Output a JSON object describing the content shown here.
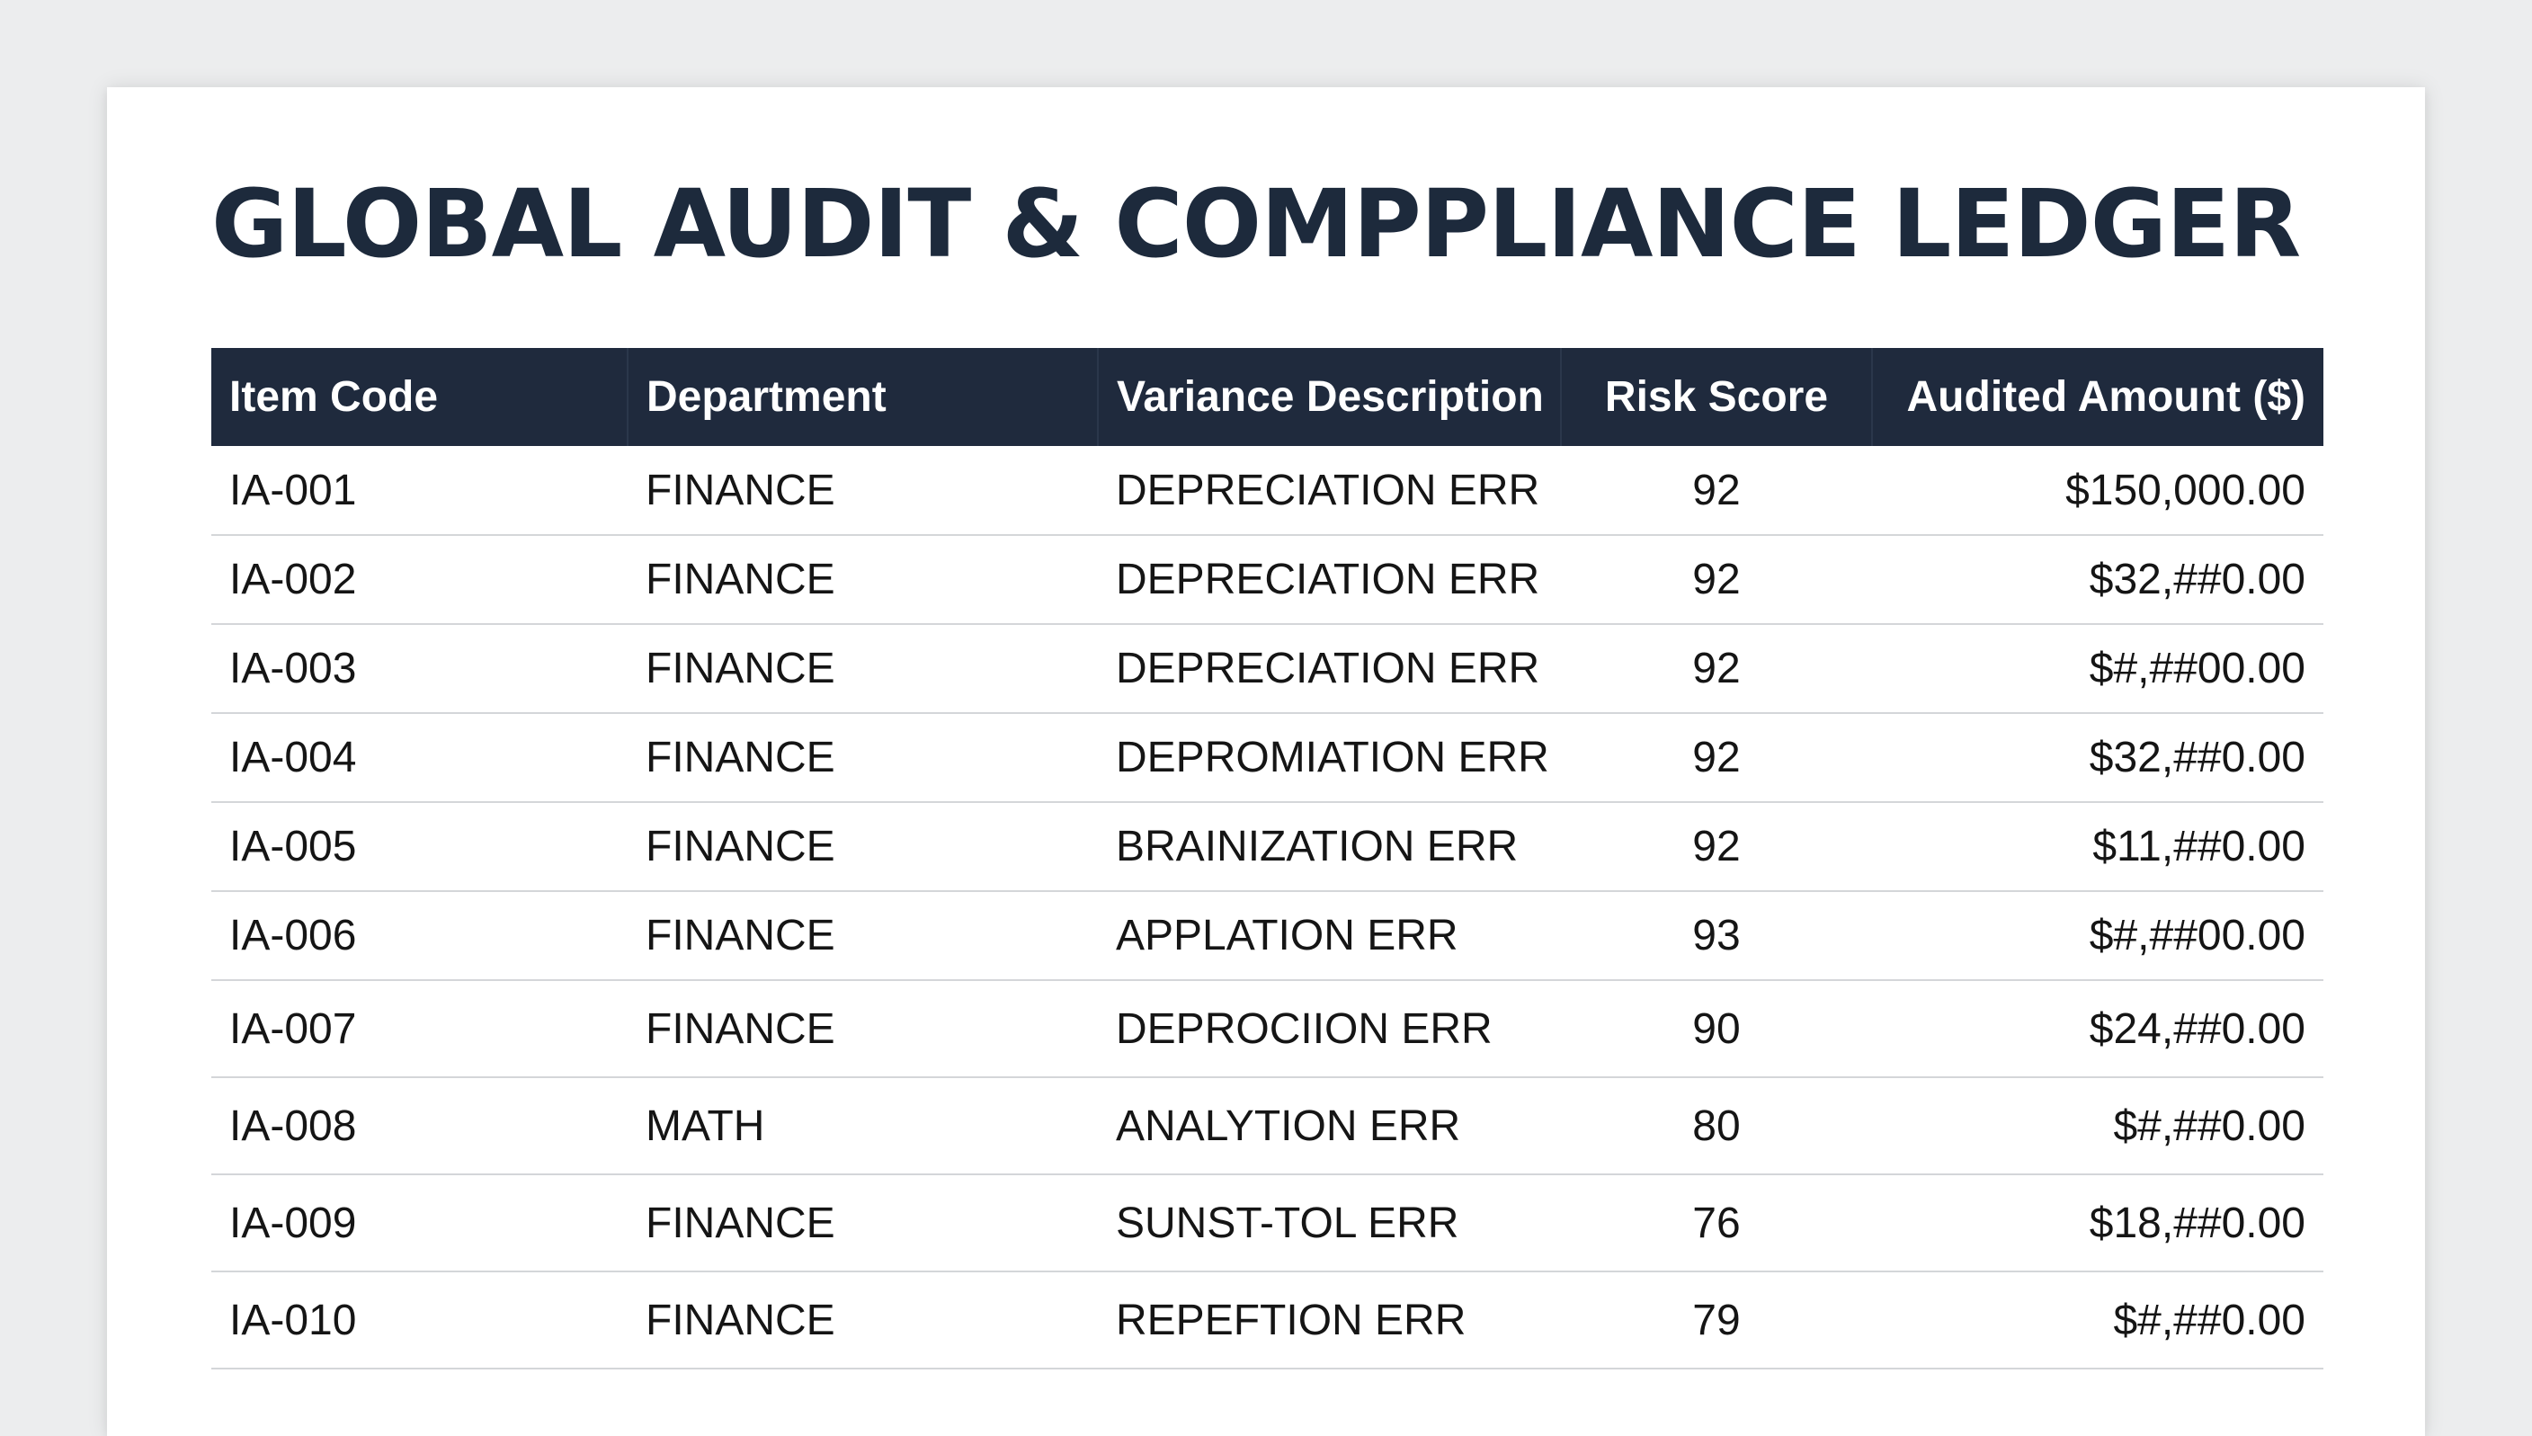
{
  "title": "GLOBAL AUDIT & COMPPLIANCE LEDGER",
  "table": {
    "columns": [
      "Item Code",
      "Department",
      "Variance Description",
      "Risk Score",
      "Audited Amount ($)"
    ],
    "rows": [
      {
        "code": "IA-001",
        "department": "FINANCE",
        "description": "DEPRECIATION ERR",
        "risk": "92",
        "amount": "$150,000.00"
      },
      {
        "code": "IA-002",
        "department": "FINANCE",
        "description": "DEPRECIATION ERR",
        "risk": "92",
        "amount": "$32,##0.00"
      },
      {
        "code": "IA-003",
        "department": "FINANCE",
        "description": "DEPRECIATION ERR",
        "risk": "92",
        "amount": "$#,##00.00"
      },
      {
        "code": "IA-004",
        "department": "FINANCE",
        "description": "DEPROMIATION ERR",
        "risk": "92",
        "amount": "$32,##0.00"
      },
      {
        "code": "IA-005",
        "department": "FINANCE",
        "description": "BRAINIZATION ERR",
        "risk": "92",
        "amount": "$11,##0.00"
      },
      {
        "code": "IA-006",
        "department": "FINANCE",
        "description": "APPLATION ERR",
        "risk": "93",
        "amount": "$#,##00.00"
      },
      {
        "code": "IA-007",
        "department": "FINANCE",
        "description": "DEPROCIION ERR",
        "risk": "90",
        "amount": "$24,##0.00"
      },
      {
        "code": "IA-008",
        "department": "MATH",
        "description": "ANALYTION ERR",
        "risk": "80",
        "amount": "$#,##0.00"
      },
      {
        "code": "IA-009",
        "department": "FINANCE",
        "description": "SUNST-TOL ERR",
        "risk": "76",
        "amount": "$18,##0.00"
      },
      {
        "code": "IA-010",
        "department": "FINANCE",
        "description": "REPEFTION ERR",
        "risk": "79",
        "amount": "$#,##0.00"
      }
    ]
  }
}
